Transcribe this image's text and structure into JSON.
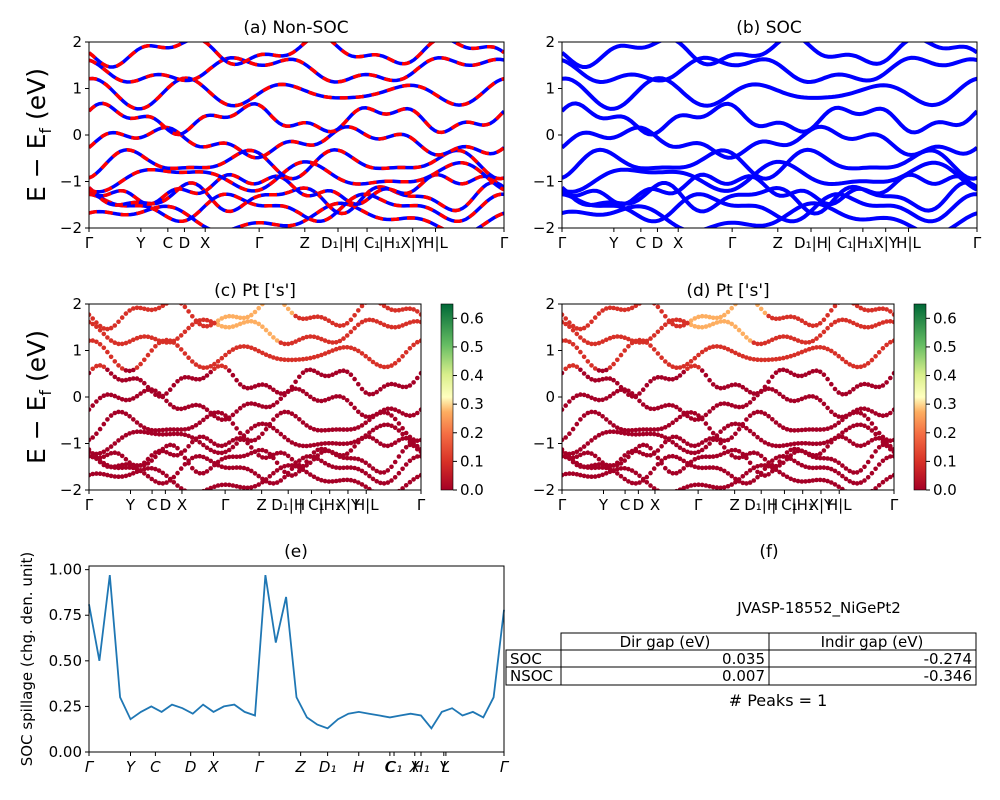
{
  "ylabel_band": "E − E",
  "ylabel_sub": "f",
  "ylabel_unit": " (eV)",
  "band_ticks": [
    "Γ",
    "Y",
    "C",
    "D",
    "X",
    "Γ",
    "Z",
    "D₁|H",
    "| C₁",
    "|H₁",
    "X|Y",
    "H|L",
    "Γ"
  ],
  "band_yticks": [
    "2",
    "1",
    "0",
    "−1",
    "−2"
  ],
  "colorbar_ticks": [
    "0.0",
    "0.1",
    "0.2",
    "0.3",
    "0.4",
    "0.5",
    "0.6"
  ],
  "colors": {
    "nonsoc_a": "#ff0000",
    "nonsoc_b": "#0000ff",
    "soc": "#0000ff",
    "spill": "#1f77b4"
  },
  "chart_data": [
    {
      "type": "line",
      "title": "(a) Non-SOC",
      "ylim": [
        -2,
        2
      ],
      "ylabel": "E − E_f (eV)",
      "series": [
        {
          "name": "",
          "color": "#ff0000"
        },
        {
          "name": "",
          "color": "#0000ff"
        }
      ]
    },
    {
      "type": "line",
      "title": "(b) SOC",
      "ylim": [
        -2,
        2
      ],
      "series": [
        {
          "name": "",
          "color": "#0000ff"
        }
      ]
    },
    {
      "type": "scatter",
      "title": "(c)  Pt ['s']",
      "ylim": [
        -2,
        2
      ],
      "colorbar": {
        "cmap": "RdYlGn",
        "range": [
          0,
          0.65
        ]
      }
    },
    {
      "type": "scatter",
      "title": "(d) Pt ['s']",
      "ylim": [
        -2,
        2
      ],
      "colorbar": {
        "cmap": "RdYlGn",
        "range": [
          0,
          0.65
        ]
      }
    },
    {
      "type": "line",
      "title": "(e)",
      "ylabel": "SOC spillage (chg. den. unit)",
      "ylim": [
        0,
        1.02
      ],
      "yticks": [
        "0.00",
        "0.25",
        "0.50",
        "0.75",
        "1.00"
      ],
      "xticks": [
        "Γ",
        "Y",
        "C",
        "D",
        "X",
        "Γ",
        "Z",
        "D₁",
        "H",
        "C",
        "C₁",
        "X",
        "H₁",
        "Y",
        "L",
        "Γ"
      ],
      "x": [
        0,
        0.5,
        1,
        1.5,
        2,
        2.5,
        3,
        3.5,
        4,
        4.5,
        5,
        5.5,
        6,
        6.5,
        7,
        7.5,
        8,
        8.5,
        9,
        9.5,
        10,
        10.5,
        11,
        11.5,
        12,
        12.5,
        13,
        13.5,
        14,
        14.5,
        15,
        15.5,
        16,
        16.5,
        17,
        17.5,
        18,
        18.5,
        19,
        19.5,
        20
      ],
      "values": [
        0.81,
        0.5,
        0.97,
        0.3,
        0.18,
        0.22,
        0.25,
        0.22,
        0.26,
        0.24,
        0.21,
        0.26,
        0.22,
        0.25,
        0.26,
        0.22,
        0.2,
        0.97,
        0.6,
        0.85,
        0.3,
        0.19,
        0.15,
        0.13,
        0.18,
        0.21,
        0.22,
        0.21,
        0.2,
        0.19,
        0.2,
        0.21,
        0.2,
        0.13,
        0.22,
        0.24,
        0.2,
        0.22,
        0.19,
        0.3,
        0.78
      ]
    },
    {
      "type": "table",
      "title": "(f)",
      "subtitle": "JVASP-18552_NiGePt2",
      "columns": [
        "",
        "Dir gap (eV)",
        "Indir gap (eV)"
      ],
      "rows": [
        [
          "SOC",
          "0.035",
          "-0.274"
        ],
        [
          "NSOC",
          "0.007",
          "-0.346"
        ]
      ],
      "footer": "# Peaks = 1"
    }
  ]
}
